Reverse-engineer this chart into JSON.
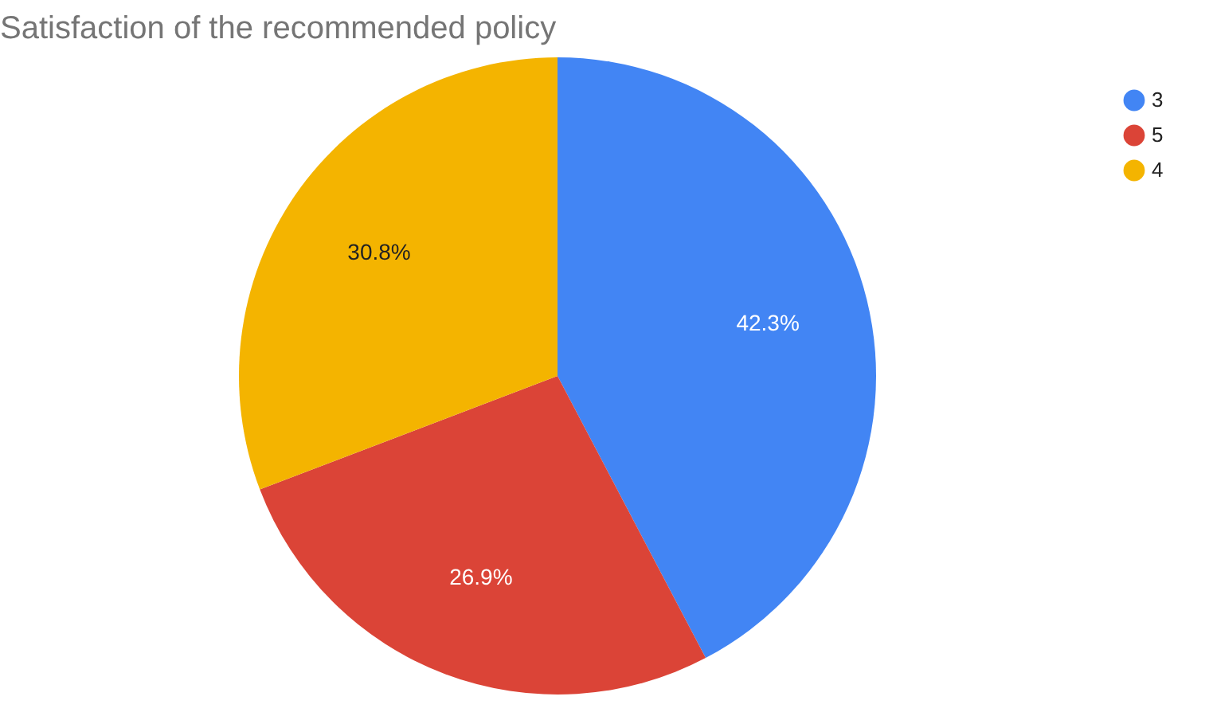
{
  "chart_data": {
    "type": "pie",
    "title": "Satisfaction of the recommended policy",
    "categories": [
      "3",
      "5",
      "4"
    ],
    "values": [
      42.3,
      26.9,
      30.8
    ],
    "colors": [
      "#4285f4",
      "#db4437",
      "#f4b400"
    ],
    "value_labels": [
      "42.3%",
      "26.9%",
      "30.8%"
    ],
    "legend": "top right"
  }
}
